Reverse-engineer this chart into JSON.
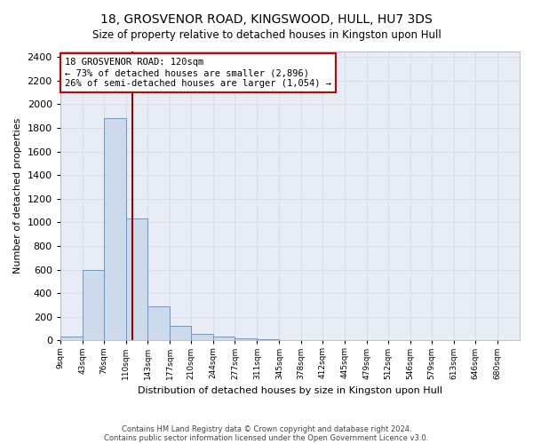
{
  "title1": "18, GROSVENOR ROAD, KINGSWOOD, HULL, HU7 3DS",
  "title2": "Size of property relative to detached houses in Kingston upon Hull",
  "xlabel": "Distribution of detached houses by size in Kingston upon Hull",
  "ylabel": "Number of detached properties",
  "footnote1": "Contains HM Land Registry data © Crown copyright and database right 2024.",
  "footnote2": "Contains public sector information licensed under the Open Government Licence v3.0.",
  "bin_labels": [
    "9sqm",
    "43sqm",
    "76sqm",
    "110sqm",
    "143sqm",
    "177sqm",
    "210sqm",
    "244sqm",
    "277sqm",
    "311sqm",
    "345sqm",
    "378sqm",
    "412sqm",
    "445sqm",
    "479sqm",
    "512sqm",
    "546sqm",
    "579sqm",
    "613sqm",
    "646sqm",
    "680sqm"
  ],
  "bar_heights": [
    30,
    600,
    1880,
    1030,
    290,
    120,
    55,
    30,
    15,
    8,
    5,
    3,
    2,
    2,
    1,
    1,
    1,
    0,
    0,
    0,
    0
  ],
  "bar_color": "#ccdaeb",
  "bar_edge_color": "#6699cc",
  "property_size_sqm": 120,
  "annotation_line1": "18 GROSVENOR ROAD: 120sqm",
  "annotation_line2": "← 73% of detached houses are smaller (2,896)",
  "annotation_line3": "26% of semi-detached houses are larger (1,054) →",
  "vline_color": "#990000",
  "annotation_box_facecolor": "#ffffff",
  "annotation_box_edgecolor": "#cc0000",
  "ylim": [
    0,
    2450
  ],
  "yticks": [
    0,
    200,
    400,
    600,
    800,
    1000,
    1200,
    1400,
    1600,
    1800,
    2000,
    2200,
    2400
  ],
  "grid_color": "#d8dde8",
  "bg_color": "#e8edf5"
}
